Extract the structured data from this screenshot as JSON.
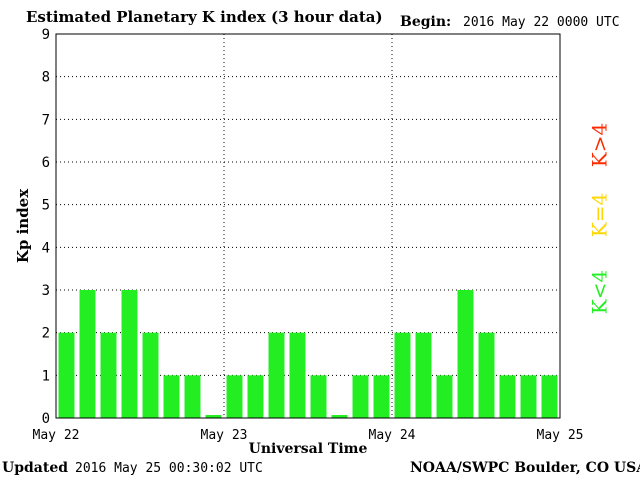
{
  "header": {
    "title": "Estimated Planetary K index (3 hour data)",
    "begin_label": "Begin:",
    "begin_value": "2016 May 22 0000 UTC"
  },
  "footer": {
    "updated_label": "Updated",
    "updated_value": "2016 May 25 00:30:02 UTC",
    "credit": "NOAA/SWPC Boulder, CO USA"
  },
  "legend": [
    {
      "label": "K>4",
      "color": "#ff2a00"
    },
    {
      "label": "K=4",
      "color": "#ffd700"
    },
    {
      "label": "K<4",
      "color": "#22ee22"
    }
  ],
  "chart_data": {
    "type": "bar",
    "title": "Estimated Planetary K index (3 hour data)",
    "xlabel": "Universal Time",
    "ylabel": "Kp index",
    "ylim": [
      0,
      9
    ],
    "yticks": [
      "0",
      "1",
      "2",
      "3",
      "4",
      "5",
      "6",
      "7",
      "8",
      "9"
    ],
    "xticks": [
      "May 22",
      "May 23",
      "May 24",
      "May 25"
    ],
    "values": [
      2,
      3,
      2,
      3,
      2,
      1,
      1,
      0.07,
      1,
      1,
      2,
      2,
      1,
      0.07,
      1,
      1,
      2,
      2,
      1,
      3,
      2,
      1,
      1,
      1
    ],
    "bar_color": "#22ee22",
    "grid": "dotted at each integer Kp and each day boundary"
  }
}
